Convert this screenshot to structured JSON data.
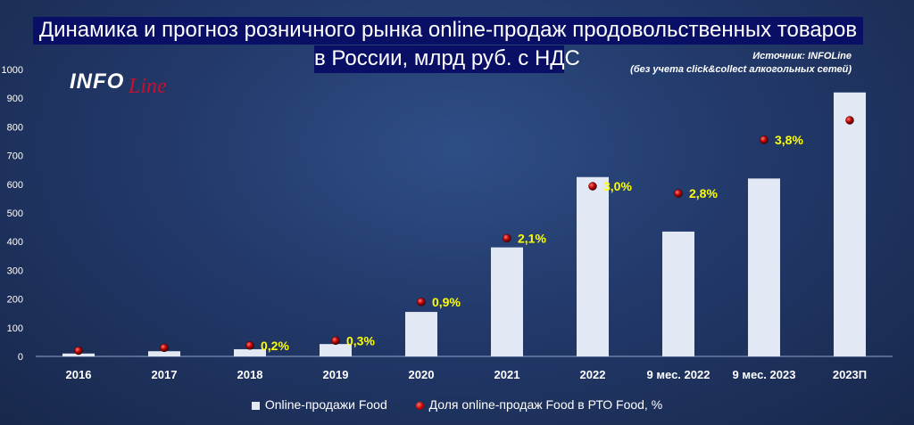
{
  "title_line1": "Динамика и прогноз розничного рынка online-продаж продовольственных товаров",
  "title_line2": "в России, млрд руб. с НДС",
  "source_line1": "Источник: INFOLine",
  "source_line2": "(без учета click&collect алкогольных сетей)",
  "logo": {
    "part1": "INFO",
    "part2": "Line"
  },
  "legend": {
    "bars": "Online-продажи Food",
    "dots": "Доля online-продаж Food в РТО Food, %"
  },
  "colors": {
    "background": "#1c2f57",
    "bar": "#e3e8f5",
    "dot": "#c00000",
    "share_label": "#ffff00",
    "title_box": "#0a0f66"
  },
  "chart_data": {
    "type": "bar",
    "categories": [
      "2016",
      "2017",
      "2018",
      "2019",
      "2020",
      "2021",
      "2022",
      "9 мес. 2022",
      "9 мес. 2023",
      "2023П"
    ],
    "series": [
      {
        "name": "Online-продажи Food",
        "type": "bar",
        "values": [
          10,
          18,
          25,
          43,
          155,
          380,
          625,
          435,
          620,
          920
        ]
      },
      {
        "name": "Доля online-продаж Food в РТО Food, %",
        "type": "scatter",
        "plot_values": [
          20,
          30,
          38,
          55,
          190,
          412,
          593,
          568,
          755,
          823
        ],
        "labels": [
          "",
          "",
          "0,2%",
          "0,3%",
          "0,9%",
          "2,1%",
          "3,0%",
          "2,8%",
          "3,8%",
          ""
        ]
      }
    ],
    "ylim": [
      0,
      1000
    ],
    "yticks": [
      0,
      100,
      200,
      300,
      400,
      500,
      600,
      700,
      800,
      900,
      1000
    ],
    "grid": false,
    "legend_position": "bottom"
  }
}
